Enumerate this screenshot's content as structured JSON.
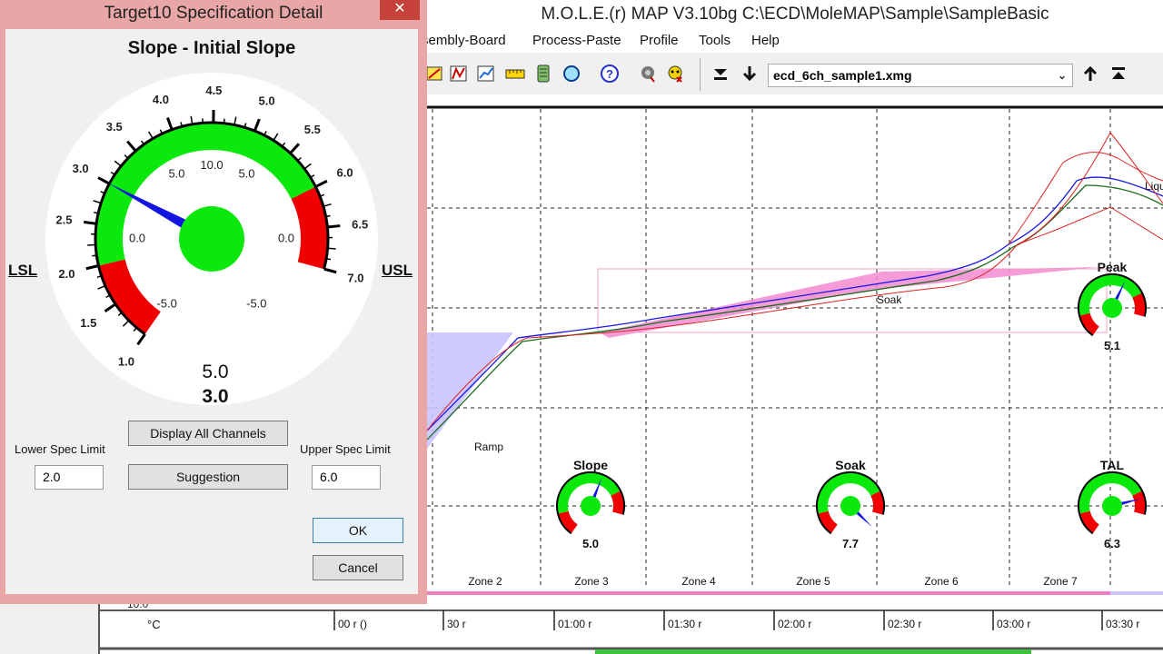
{
  "main_window": {
    "title": "M.O.L.E.(r) MAP V3.10bg  C:\\ECD\\MoleMAP\\Sample\\SampleBasic",
    "menu": [
      "sembly-Board",
      "Process-Paste",
      "Profile",
      "Tools",
      "Help"
    ],
    "file_select": "ecd_6ch_sample1.xmg",
    "icons": [
      "chart-edit-icon",
      "chart-line-icon",
      "chart-trend-icon",
      "ruler-icon",
      "battery-icon",
      "globe-icon",
      "help-icon",
      "gear-icon",
      "bug-icon",
      "move-bottom-icon",
      "move-down-icon",
      "move-up-icon",
      "move-top-icon"
    ]
  },
  "profile_chart": {
    "zones": [
      "Zone 2",
      "Zone 3",
      "Zone 4",
      "Zone 5",
      "Zone 6",
      "Zone 7"
    ],
    "regions": [
      "Ramp",
      "Soak",
      "Liqu"
    ],
    "mini_gauges": [
      {
        "name": "Slope",
        "value": "5.0",
        "needle": 5.0
      },
      {
        "name": "Soak",
        "value": "7.7",
        "needle": 7.7
      },
      {
        "name": "TAL",
        "value": "6.3",
        "needle": 6.3
      },
      {
        "name": "Peak",
        "value": "5.1",
        "needle": 5.1
      }
    ],
    "time_ticks": [
      "00 r ()",
      "30 r",
      "01:00 r",
      "01:30 r",
      "02:00 r",
      "02:30 r",
      "03:00 r",
      "03:30 r"
    ],
    "unit": "°C",
    "y_partial_label": "10.0"
  },
  "dialog": {
    "title": "Target10 Specification Detail",
    "close": "✕",
    "heading": "Slope - Initial Slope",
    "gauge": {
      "outer_labels": [
        "1.0",
        "1.5",
        "2.0",
        "2.5",
        "3.0",
        "3.5",
        "4.0",
        "4.5",
        "5.0",
        "5.5",
        "6.0",
        "6.5",
        "7.0"
      ],
      "inner_labels": [
        "-5.0",
        "0.0",
        "5.0",
        "10.0",
        "5.0",
        "0.0",
        "-5.0"
      ],
      "value_target": "5.0",
      "value_actual": "3.0",
      "needle": 3.0,
      "scale_min": 1.0,
      "scale_max": 7.0,
      "lsl": 2.0,
      "usl": 6.0
    },
    "lsl_label": "LSL",
    "usl_label": "USL",
    "display_all_label": "Display All Channels",
    "suggestion_label": "Suggestion",
    "lower_spec_label": "Lower Spec Limit",
    "lower_spec_value": "2.0",
    "upper_spec_label": "Upper Spec Limit",
    "upper_spec_value": "6.0",
    "ok_label": "OK",
    "cancel_label": "Cancel"
  }
}
